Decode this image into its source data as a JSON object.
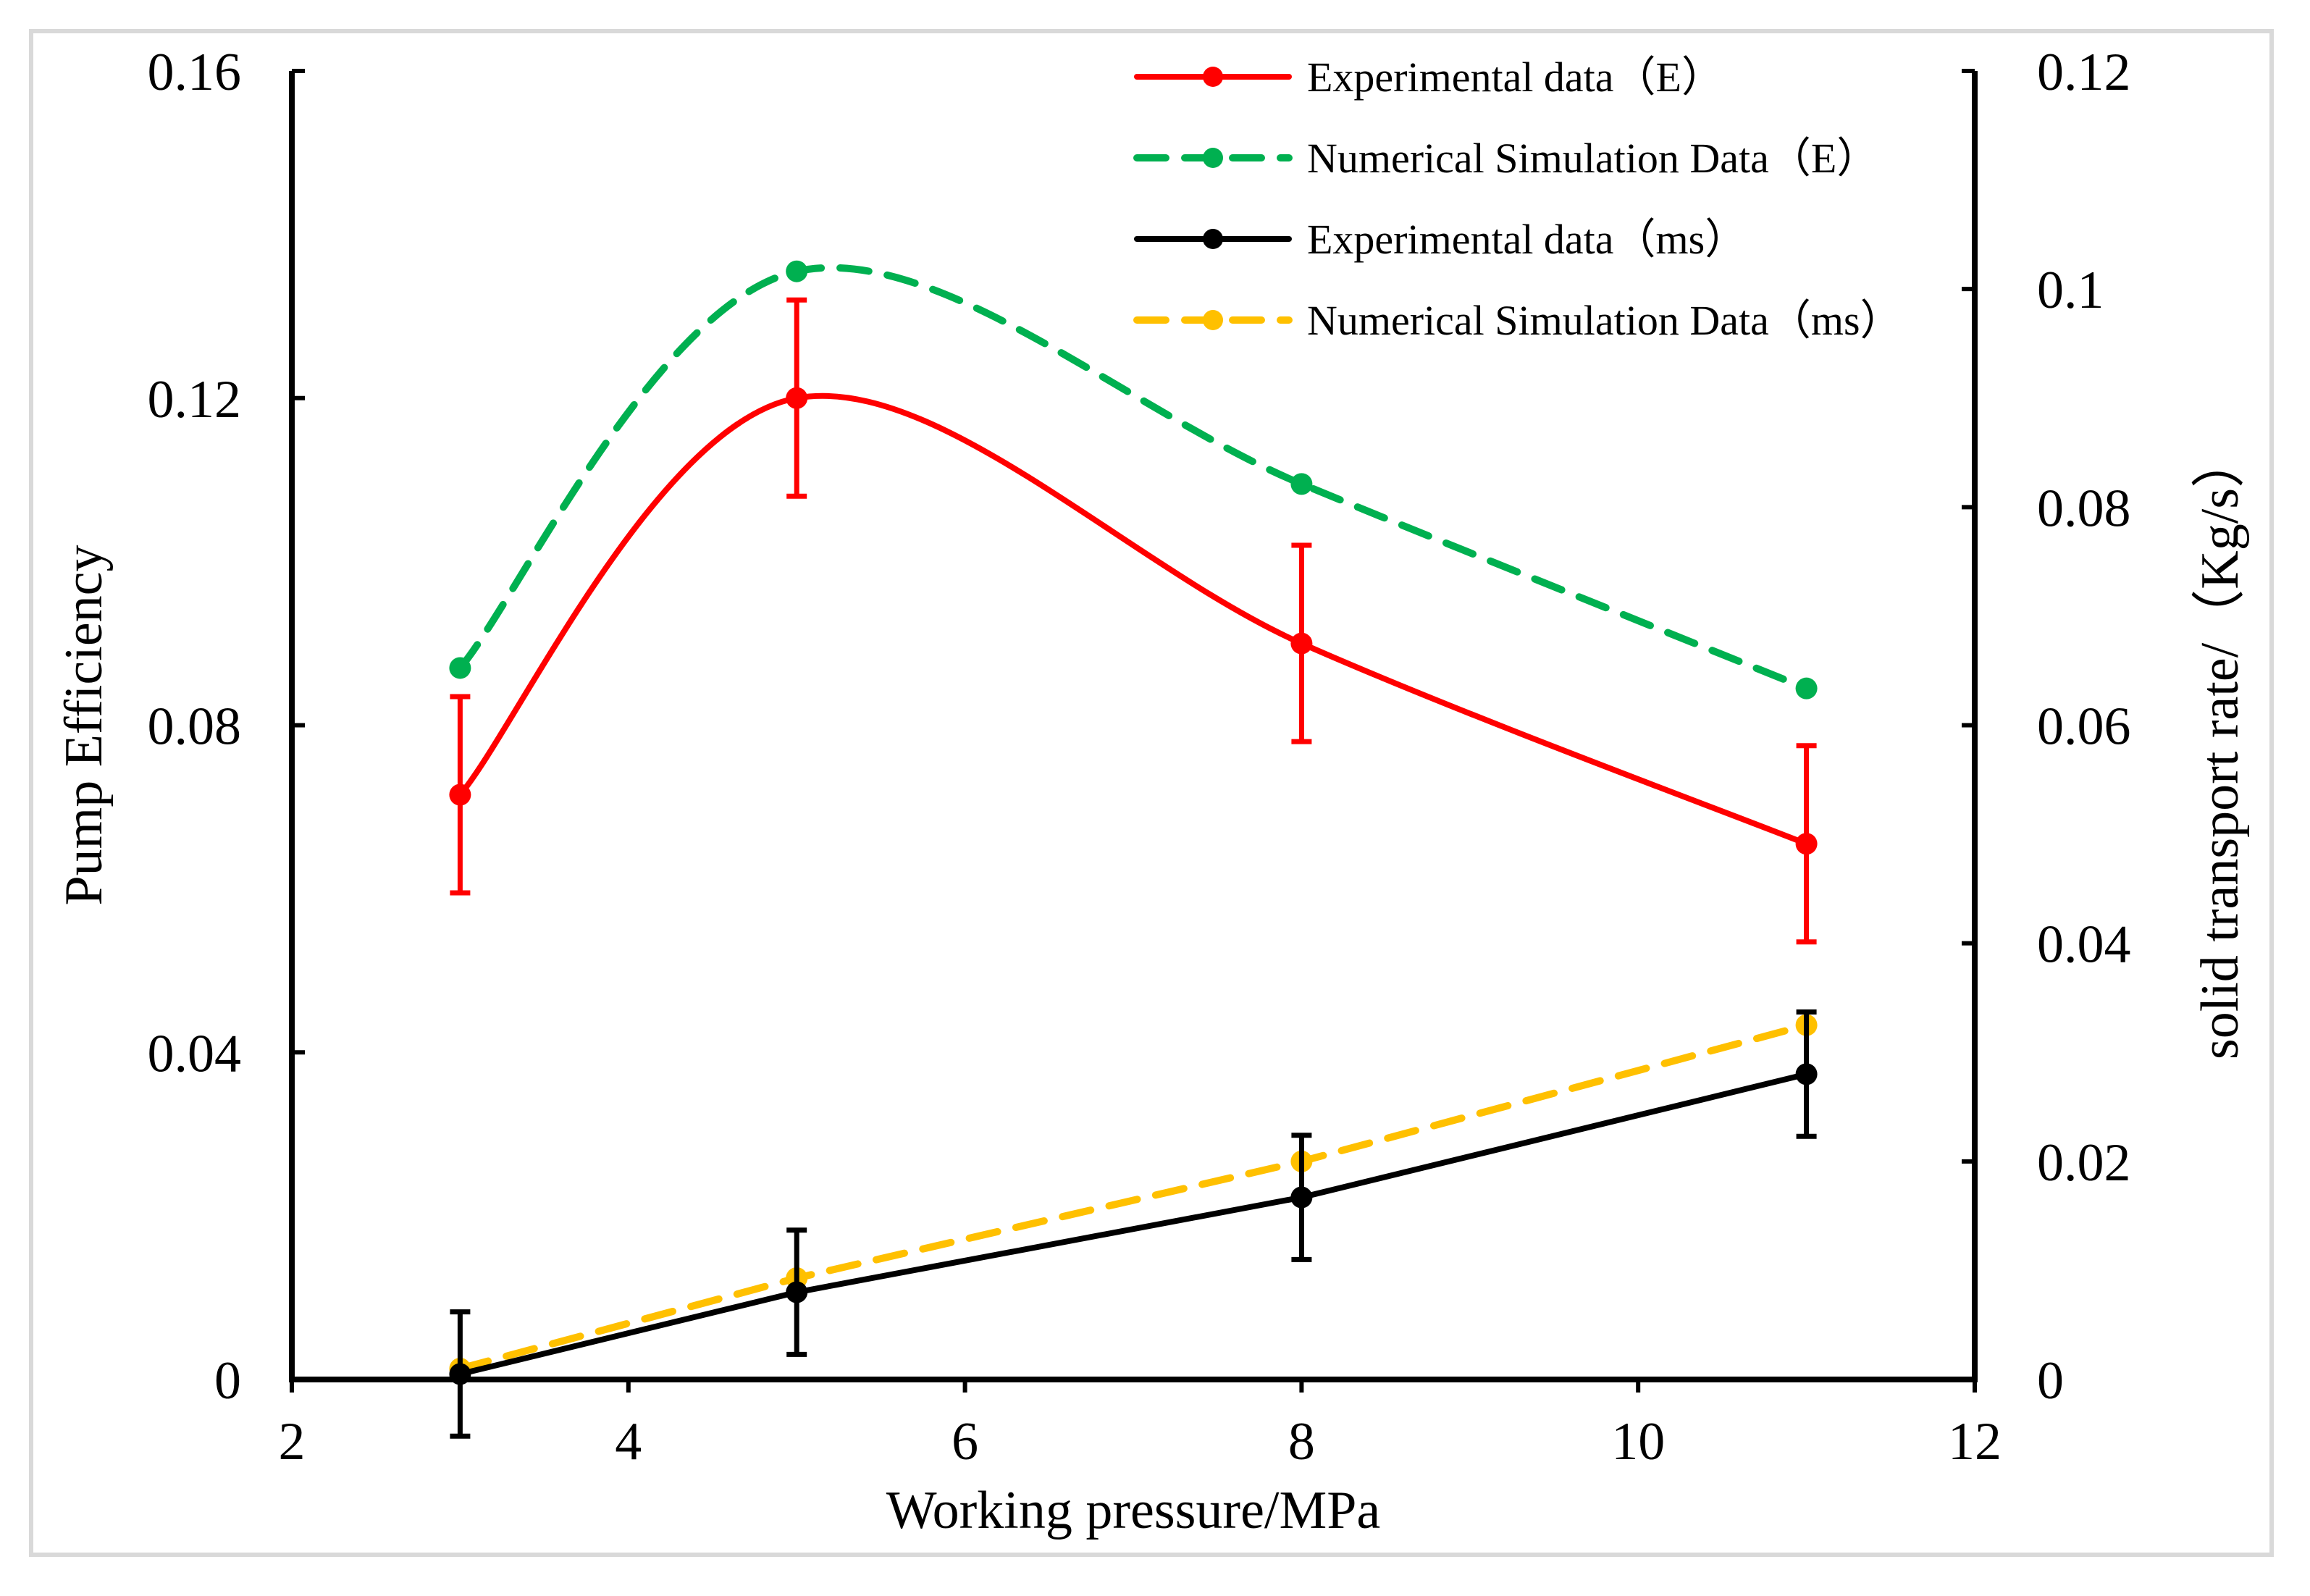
{
  "chart_data": {
    "type": "line",
    "xlabel": "Working pressure/MPa",
    "ylabel": "Pump Efficiency",
    "y2label": "solid transport rate/（Kg/s）",
    "xlim": [
      2,
      12
    ],
    "ylim": [
      0,
      0.16
    ],
    "y2lim": [
      0,
      0.12
    ],
    "xticks": [
      "2",
      "4",
      "6",
      "8",
      "10",
      "12"
    ],
    "yticks": [
      "0",
      "0.04",
      "0.08",
      "0.12",
      "0.16"
    ],
    "y2ticks": [
      "0",
      "0.02",
      "0.04",
      "0.06",
      "0.08",
      "0.1",
      "0.12"
    ],
    "grid": false,
    "legend": "top-right",
    "series": [
      {
        "name": "Experimental data（E）",
        "axis": "left",
        "color": "#ff0000",
        "style": "solid",
        "smooth": true,
        "x": [
          3,
          5,
          8,
          11
        ],
        "y": [
          0.0715,
          0.12,
          0.09,
          0.0655
        ],
        "err": [
          0.012,
          0.012,
          0.012,
          0.012
        ]
      },
      {
        "name": "Numerical Simulation Data（E）",
        "axis": "left",
        "color": "#00b050",
        "style": "dashed",
        "smooth": true,
        "x": [
          3,
          5,
          8,
          11
        ],
        "y": [
          0.087,
          0.1355,
          0.1095,
          0.0845
        ]
      },
      {
        "name": "Experimental data（ms）",
        "axis": "right",
        "color": "#000000",
        "style": "solid",
        "smooth": false,
        "x": [
          3,
          5,
          8,
          11
        ],
        "y": [
          0.0005,
          0.008,
          0.0167,
          0.028
        ],
        "err": [
          0.0057,
          0.0057,
          0.0057,
          0.0057
        ]
      },
      {
        "name": "Numerical Simulation Data（ms）",
        "axis": "right",
        "color": "#ffc000",
        "style": "dashed",
        "smooth": false,
        "x": [
          3,
          5,
          8,
          11
        ],
        "y": [
          0.001,
          0.0093,
          0.02,
          0.0325
        ]
      }
    ]
  }
}
